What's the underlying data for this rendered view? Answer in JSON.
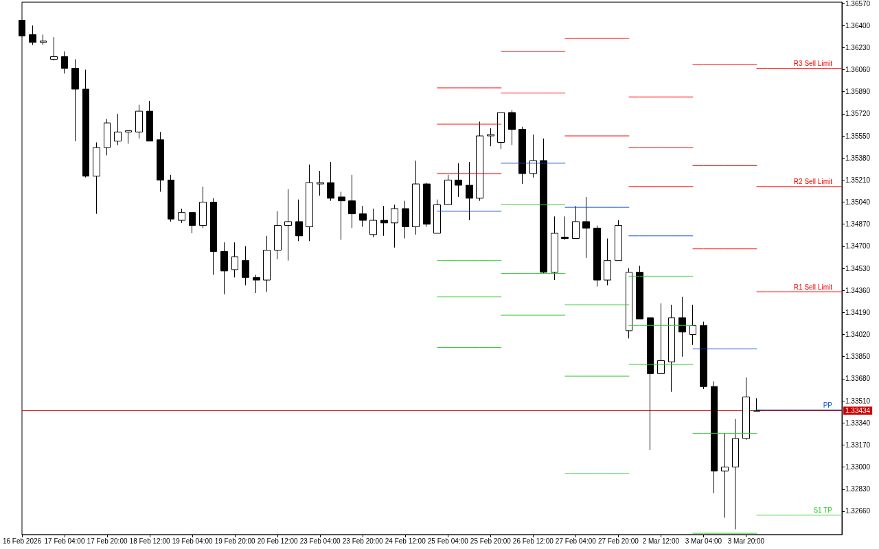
{
  "chart_data": {
    "type": "candlestick",
    "categories": [
      "16 Feb 2026",
      null,
      null,
      null,
      "17 Feb 04:00",
      null,
      null,
      null,
      "17 Feb 20:00",
      null,
      null,
      null,
      "18 Feb 12:00",
      null,
      null,
      null,
      "19 Feb 04:00",
      null,
      null,
      null,
      "19 Feb 20:00",
      null,
      null,
      null,
      "20 Feb 12:00",
      null,
      null,
      null,
      "23 Feb 04:00",
      null,
      null,
      null,
      "23 Feb 20:00",
      null,
      null,
      null,
      "24 Feb 12:00",
      null,
      null,
      null,
      "25 Feb 04:00",
      null,
      null,
      null,
      "25 Feb 20:00",
      null,
      null,
      null,
      "26 Feb 12:00",
      null,
      null,
      null,
      "27 Feb 04:00",
      null,
      null,
      null,
      "27 Feb 20:00",
      null,
      null,
      null,
      "2 Mar 12:00",
      null,
      null,
      null,
      "3 Mar 04:00",
      null,
      null,
      null,
      "3 Mar 20:00",
      null,
      null,
      null,
      null,
      null,
      null,
      null,
      null,
      null
    ],
    "ohlc": [
      [
        1.3644,
        1.3644,
        1.3632,
        1.3632
      ],
      [
        1.3633,
        1.364,
        1.3625,
        1.3627
      ],
      [
        1.3627,
        1.3633,
        1.3625,
        1.3628
      ],
      [
        1.3614,
        1.3631,
        1.3613,
        1.3616
      ],
      [
        1.3616,
        1.362,
        1.3603,
        1.3607
      ],
      [
        1.3607,
        1.3614,
        1.3551,
        1.3591
      ],
      [
        1.3591,
        1.3606,
        1.3523,
        1.3524
      ],
      [
        1.3524,
        1.355,
        1.3495,
        1.3546
      ],
      [
        1.3546,
        1.3568,
        1.354,
        1.3565
      ],
      [
        1.3551,
        1.3572,
        1.3548,
        1.3558
      ],
      [
        1.3558,
        1.3559,
        1.3549,
        1.3559
      ],
      [
        1.3558,
        1.3579,
        1.3553,
        1.3574
      ],
      [
        1.3574,
        1.3582,
        1.3551,
        1.3551
      ],
      [
        1.3552,
        1.3558,
        1.3512,
        1.3521
      ],
      [
        1.3521,
        1.3525,
        1.3489,
        1.3491
      ],
      [
        1.349,
        1.3499,
        1.3488,
        1.3496
      ],
      [
        1.3496,
        1.3496,
        1.348,
        1.3486
      ],
      [
        1.3486,
        1.3516,
        1.3484,
        1.3504
      ],
      [
        1.3504,
        1.3507,
        1.3448,
        1.3466
      ],
      [
        1.3466,
        1.3473,
        1.3433,
        1.3451
      ],
      [
        1.3452,
        1.3473,
        1.3446,
        1.3462
      ],
      [
        1.3459,
        1.347,
        1.344,
        1.3446
      ],
      [
        1.3446,
        1.3448,
        1.3434,
        1.3444
      ],
      [
        1.3444,
        1.3478,
        1.3435,
        1.3467
      ],
      [
        1.3467,
        1.3497,
        1.346,
        1.3486
      ],
      [
        1.3486,
        1.3514,
        1.3459,
        1.3489
      ],
      [
        1.3489,
        1.3506,
        1.3474,
        1.3478
      ],
      [
        1.3485,
        1.3533,
        1.3474,
        1.3519
      ],
      [
        1.3518,
        1.3528,
        1.3509,
        1.3519
      ],
      [
        1.3519,
        1.3535,
        1.3505,
        1.3507
      ],
      [
        1.3508,
        1.3512,
        1.3475,
        1.3505
      ],
      [
        1.3505,
        1.3525,
        1.3484,
        1.3495
      ],
      [
        1.3495,
        1.3501,
        1.3485,
        1.349
      ],
      [
        1.3479,
        1.3499,
        1.3477,
        1.349
      ],
      [
        1.349,
        1.3501,
        1.3478,
        1.3488
      ],
      [
        1.3488,
        1.3502,
        1.3469,
        1.3499
      ],
      [
        1.3499,
        1.3505,
        1.3476,
        1.3485
      ],
      [
        1.3485,
        1.3536,
        1.3479,
        1.3518
      ],
      [
        1.3518,
        1.3519,
        1.3485,
        1.3487
      ],
      [
        1.348,
        1.3506,
        1.348,
        1.3502
      ],
      [
        1.3502,
        1.3525,
        1.3502,
        1.3521
      ],
      [
        1.3521,
        1.3534,
        1.3508,
        1.3517
      ],
      [
        1.3517,
        1.3535,
        1.349,
        1.3507
      ],
      [
        1.3507,
        1.3566,
        1.3505,
        1.3555
      ],
      [
        1.3555,
        1.3561,
        1.3547,
        1.3556
      ],
      [
        1.355,
        1.3573,
        1.3545,
        1.3573
      ],
      [
        1.3573,
        1.3575,
        1.3548,
        1.356
      ],
      [
        1.356,
        1.3562,
        1.3518,
        1.3526
      ],
      [
        1.3526,
        1.3556,
        1.3523,
        1.3536
      ],
      [
        1.3536,
        1.3553,
        1.3449,
        1.345
      ],
      [
        1.345,
        1.3493,
        1.3444,
        1.348
      ],
      [
        1.3477,
        1.3493,
        1.3475,
        1.3476
      ],
      [
        1.3476,
        1.3501,
        1.3476,
        1.3489
      ],
      [
        1.3489,
        1.3508,
        1.3461,
        1.3484
      ],
      [
        1.3484,
        1.3486,
        1.3439,
        1.3444
      ],
      [
        1.3444,
        1.3476,
        1.344,
        1.3459
      ],
      [
        1.3459,
        1.349,
        1.3459,
        1.3486
      ],
      [
        1.3405,
        1.3453,
        1.3399,
        1.345
      ],
      [
        1.345,
        1.3455,
        1.3414,
        1.3414
      ],
      [
        1.3415,
        1.3415,
        1.3313,
        1.3372
      ],
      [
        1.3372,
        1.3426,
        1.3372,
        1.3382
      ],
      [
        1.3381,
        1.3425,
        1.3358,
        1.3415
      ],
      [
        1.3415,
        1.3431,
        1.3385,
        1.3404
      ],
      [
        1.3402,
        1.3425,
        1.3394,
        1.3409
      ],
      [
        1.3409,
        1.3412,
        1.336,
        1.3362
      ],
      [
        1.3362,
        1.3366,
        1.328,
        1.3297
      ],
      [
        1.3297,
        1.3326,
        1.3261,
        1.33
      ],
      [
        1.33,
        1.3337,
        1.3252,
        1.3322
      ],
      [
        1.3322,
        1.3369,
        1.3321,
        1.3354
      ],
      [
        1.3343,
        1.3353,
        1.3343,
        1.33434
      ],
      null,
      null,
      null,
      null,
      null,
      null,
      null,
      null
    ],
    "series": [
      {
        "type": "line",
        "color": "#ff0000",
        "values": [
          null,
          null,
          null,
          null,
          null,
          null,
          null,
          null,
          null,
          null,
          null,
          null,
          null,
          null,
          null,
          null,
          null,
          null,
          null,
          null,
          null,
          null,
          null,
          null,
          null,
          null,
          null,
          null,
          null,
          null,
          null,
          null,
          null,
          null,
          null,
          null,
          null,
          null,
          null,
          1.3592,
          1.3592,
          1.3592,
          1.3592,
          1.3592,
          1.3592,
          1.3592,
          null,
          null,
          null,
          null,
          null,
          null,
          null,
          null,
          null,
          null,
          null,
          null,
          null,
          null,
          null,
          null,
          null,
          1.361,
          1.361,
          1.361,
          1.361,
          1.361,
          1.361,
          1.361,
          null,
          null,
          null,
          null,
          null,
          null,
          null,
          null
        ]
      },
      {
        "type": "line",
        "color": "#ff0000",
        "values": [
          null,
          null,
          null,
          null,
          null,
          null,
          null,
          null,
          null,
          null,
          null,
          null,
          null,
          null,
          null,
          null,
          null,
          null,
          null,
          null,
          null,
          null,
          null,
          null,
          null,
          null,
          null,
          null,
          null,
          null,
          null,
          null,
          null,
          null,
          null,
          null,
          null,
          null,
          null,
          null,
          null,
          null,
          null,
          null,
          null,
          null,
          null,
          null,
          null,
          null,
          null,
          null,
          null,
          null,
          null,
          null,
          null,
          1.3585,
          1.3585,
          1.3585,
          1.3585,
          1.3585,
          1.3585,
          1.3585,
          null,
          null,
          null,
          null,
          null,
          null,
          null,
          null,
          null,
          null,
          null,
          null,
          null,
          null
        ]
      },
      {
        "type": "line",
        "color": "#ff0000",
        "values": [
          null,
          null,
          null,
          null,
          null,
          null,
          null,
          null,
          null,
          null,
          null,
          null,
          null,
          null,
          null,
          null,
          null,
          null,
          null,
          null,
          null,
          null,
          null,
          null,
          null,
          null,
          null,
          null,
          null,
          null,
          null,
          null,
          null,
          null,
          null,
          null,
          null,
          null,
          null,
          1.3564,
          1.3564,
          1.3564,
          1.3564,
          1.3564,
          1.3564,
          1.3564,
          null,
          null,
          null,
          null,
          null,
          1.363,
          1.363,
          1.363,
          1.363,
          1.363,
          1.363,
          1.363,
          null,
          null,
          null,
          null,
          null,
          1.3532,
          1.3532,
          1.3532,
          1.3532,
          1.3532,
          1.3532,
          1.3532,
          null,
          null,
          null,
          null,
          null,
          null,
          null,
          null
        ]
      },
      {
        "type": "line",
        "color": "#ff0000",
        "values": [
          null,
          null,
          null,
          null,
          null,
          null,
          null,
          null,
          null,
          null,
          null,
          null,
          null,
          null,
          null,
          null,
          null,
          null,
          null,
          null,
          null,
          null,
          null,
          null,
          null,
          null,
          null,
          null,
          null,
          null,
          null,
          null,
          null,
          null,
          null,
          null,
          null,
          null,
          null,
          null,
          null,
          null,
          null,
          null,
          null,
          1.362,
          1.362,
          1.362,
          1.362,
          1.362,
          1.362,
          1.362,
          null,
          null,
          null,
          null,
          null,
          1.3546,
          1.3546,
          1.3546,
          1.3546,
          1.3546,
          1.3546,
          1.3546,
          null,
          null,
          null,
          null,
          null,
          null,
          null,
          null,
          null,
          null,
          null,
          null,
          null,
          null
        ]
      },
      {
        "type": "line",
        "color": "#ff0000",
        "values": [
          null,
          null,
          null,
          null,
          null,
          null,
          null,
          null,
          null,
          null,
          null,
          null,
          null,
          null,
          null,
          null,
          null,
          null,
          null,
          null,
          null,
          null,
          null,
          null,
          null,
          null,
          null,
          null,
          null,
          null,
          null,
          null,
          null,
          null,
          null,
          null,
          null,
          null,
          null,
          1.3526,
          1.3526,
          1.3526,
          1.3526,
          1.3526,
          1.3526,
          1.3526,
          null,
          null,
          null,
          null,
          null,
          1.3555,
          1.3555,
          1.3555,
          1.3555,
          1.3555,
          1.3555,
          1.3555,
          null,
          null,
          null,
          null,
          null,
          1.3468,
          1.3468,
          1.3468,
          1.3468,
          1.3468,
          1.3468,
          1.3468,
          null,
          null,
          null,
          null,
          null,
          null,
          null,
          null
        ]
      },
      {
        "type": "line",
        "color": "#ff0000",
        "values": [
          null,
          null,
          null,
          null,
          null,
          null,
          null,
          null,
          null,
          null,
          null,
          null,
          null,
          null,
          null,
          null,
          null,
          null,
          null,
          null,
          null,
          null,
          null,
          null,
          null,
          null,
          null,
          null,
          null,
          null,
          null,
          null,
          null,
          null,
          null,
          null,
          null,
          null,
          null,
          null,
          null,
          null,
          null,
          null,
          null,
          1.3588,
          1.3588,
          1.3588,
          1.3588,
          1.3588,
          1.3588,
          1.3588,
          null,
          null,
          null,
          null,
          null,
          1.3516,
          1.3516,
          1.3516,
          1.3516,
          1.3516,
          1.3516,
          1.3516,
          null,
          null,
          null,
          null,
          null,
          null,
          null,
          null,
          null,
          null,
          null,
          null,
          null,
          null
        ]
      },
      {
        "type": "line",
        "color": "#0a4fd4",
        "values": [
          null,
          null,
          null,
          null,
          null,
          null,
          null,
          null,
          null,
          null,
          null,
          null,
          null,
          null,
          null,
          null,
          null,
          null,
          null,
          null,
          null,
          null,
          null,
          null,
          null,
          null,
          null,
          null,
          null,
          null,
          null,
          null,
          null,
          null,
          null,
          null,
          null,
          null,
          null,
          1.3497,
          1.3497,
          1.3497,
          1.3497,
          1.3497,
          1.3497,
          1.3497,
          null,
          null,
          null,
          null,
          null,
          1.35,
          1.35,
          1.35,
          1.35,
          1.35,
          1.35,
          1.35,
          null,
          null,
          null,
          null,
          null,
          1.3391,
          1.3391,
          1.3391,
          1.3391,
          1.3391,
          1.3391,
          1.3391,
          null,
          null,
          null,
          null,
          null,
          null,
          null,
          null
        ]
      },
      {
        "type": "line",
        "color": "#0a4fd4",
        "values": [
          null,
          null,
          null,
          null,
          null,
          null,
          null,
          null,
          null,
          null,
          null,
          null,
          null,
          null,
          null,
          null,
          null,
          null,
          null,
          null,
          null,
          null,
          null,
          null,
          null,
          null,
          null,
          null,
          null,
          null,
          null,
          null,
          null,
          null,
          null,
          null,
          null,
          null,
          null,
          null,
          null,
          null,
          null,
          null,
          null,
          1.3534,
          1.3534,
          1.3534,
          1.3534,
          1.3534,
          1.3534,
          1.3534,
          null,
          null,
          null,
          null,
          null,
          1.3478,
          1.3478,
          1.3478,
          1.3478,
          1.3478,
          1.3478,
          1.3478,
          null,
          null,
          null,
          null,
          null,
          null,
          null,
          null,
          null,
          null,
          null,
          null,
          null,
          null
        ]
      },
      {
        "type": "line",
        "color": "#32cd32",
        "values": [
          null,
          null,
          null,
          null,
          null,
          null,
          null,
          null,
          null,
          null,
          null,
          null,
          null,
          null,
          null,
          null,
          null,
          null,
          null,
          null,
          null,
          null,
          null,
          null,
          null,
          null,
          null,
          null,
          null,
          null,
          null,
          null,
          null,
          null,
          null,
          null,
          null,
          null,
          null,
          1.3459,
          1.3459,
          1.3459,
          1.3459,
          1.3459,
          1.3459,
          1.3459,
          null,
          null,
          null,
          null,
          null,
          1.3425,
          1.3425,
          1.3425,
          1.3425,
          1.3425,
          1.3425,
          1.3425,
          null,
          null,
          null,
          null,
          null,
          1.3326,
          1.3326,
          1.3326,
          1.3326,
          1.3326,
          1.3326,
          1.3326,
          null,
          null,
          null,
          null,
          null,
          null,
          null,
          null
        ]
      },
      {
        "type": "line",
        "color": "#32cd32",
        "values": [
          null,
          null,
          null,
          null,
          null,
          null,
          null,
          null,
          null,
          null,
          null,
          null,
          null,
          null,
          null,
          null,
          null,
          null,
          null,
          null,
          null,
          null,
          null,
          null,
          null,
          null,
          null,
          null,
          null,
          null,
          null,
          null,
          null,
          null,
          null,
          null,
          null,
          null,
          null,
          null,
          null,
          null,
          null,
          null,
          null,
          1.3502,
          1.3502,
          1.3502,
          1.3502,
          1.3502,
          1.3502,
          1.3502,
          null,
          null,
          null,
          null,
          null,
          1.3447,
          1.3447,
          1.3447,
          1.3447,
          1.3447,
          1.3447,
          1.3447,
          null,
          null,
          null,
          null,
          null,
          null,
          null,
          null,
          null,
          null,
          null,
          null,
          null,
          null
        ]
      },
      {
        "type": "line",
        "color": "#32cd32",
        "values": [
          null,
          null,
          null,
          null,
          null,
          null,
          null,
          null,
          null,
          null,
          null,
          null,
          null,
          null,
          null,
          null,
          null,
          null,
          null,
          null,
          null,
          null,
          null,
          null,
          null,
          null,
          null,
          null,
          null,
          null,
          null,
          null,
          null,
          null,
          null,
          null,
          null,
          null,
          null,
          1.3431,
          1.3431,
          1.3431,
          1.3431,
          1.3431,
          1.3431,
          1.3431,
          null,
          null,
          null,
          null,
          null,
          1.337,
          1.337,
          1.337,
          1.337,
          1.337,
          1.337,
          1.337,
          null,
          null,
          null,
          null,
          null,
          1.3249,
          1.3249,
          1.3249,
          1.3249,
          1.3249,
          1.3249,
          1.3249,
          null,
          null,
          null,
          null,
          null,
          null,
          null,
          null
        ]
      },
      {
        "type": "line",
        "color": "#32cd32",
        "values": [
          null,
          null,
          null,
          null,
          null,
          null,
          null,
          null,
          null,
          null,
          null,
          null,
          null,
          null,
          null,
          null,
          null,
          null,
          null,
          null,
          null,
          null,
          null,
          null,
          null,
          null,
          null,
          null,
          null,
          null,
          null,
          null,
          null,
          null,
          null,
          null,
          null,
          null,
          null,
          null,
          null,
          null,
          null,
          null,
          null,
          1.3449,
          1.3449,
          1.3449,
          1.3449,
          1.3449,
          1.3449,
          1.3449,
          null,
          null,
          null,
          null,
          null,
          1.3409,
          1.3409,
          1.3409,
          1.3409,
          1.3409,
          1.3409,
          1.3409,
          null,
          null,
          null,
          null,
          null,
          null,
          null,
          null,
          null,
          null,
          null,
          null,
          null,
          null
        ]
      },
      {
        "type": "line",
        "color": "#32cd32",
        "values": [
          null,
          null,
          null,
          null,
          null,
          null,
          null,
          null,
          null,
          null,
          null,
          null,
          null,
          null,
          null,
          null,
          null,
          null,
          null,
          null,
          null,
          null,
          null,
          null,
          null,
          null,
          null,
          null,
          null,
          null,
          null,
          null,
          null,
          null,
          null,
          null,
          null,
          null,
          null,
          1.3392,
          1.3392,
          1.3392,
          1.3392,
          1.3392,
          1.3392,
          1.3392,
          null,
          null,
          null,
          null,
          null,
          1.3295,
          1.3295,
          1.3295,
          1.3295,
          1.3295,
          1.3295,
          1.3295,
          null,
          null,
          null,
          null,
          null,
          null,
          null,
          null,
          null,
          null,
          null,
          null,
          null,
          null,
          null,
          null,
          null,
          null,
          null,
          null
        ]
      },
      {
        "type": "line",
        "color": "#32cd32",
        "values": [
          null,
          null,
          null,
          null,
          null,
          null,
          null,
          null,
          null,
          null,
          null,
          null,
          null,
          null,
          null,
          null,
          null,
          null,
          null,
          null,
          null,
          null,
          null,
          null,
          null,
          null,
          null,
          null,
          null,
          null,
          null,
          null,
          null,
          null,
          null,
          null,
          null,
          null,
          null,
          null,
          null,
          null,
          null,
          null,
          null,
          1.3417,
          1.3417,
          1.3417,
          1.3417,
          1.3417,
          1.3417,
          1.3417,
          null,
          null,
          null,
          null,
          null,
          1.3379,
          1.3379,
          1.3379,
          1.3379,
          1.3379,
          1.3379,
          1.3379,
          null,
          null,
          null,
          null,
          null,
          null,
          null,
          null,
          null,
          null,
          null,
          null,
          null,
          null
        ]
      },
      {
        "type": "line",
        "name": "R3 Sell Limit",
        "color": "#ff0000",
        "values": [
          null,
          null,
          null,
          null,
          null,
          null,
          null,
          null,
          null,
          null,
          null,
          null,
          null,
          null,
          null,
          null,
          null,
          null,
          null,
          null,
          null,
          null,
          null,
          null,
          null,
          null,
          null,
          null,
          null,
          null,
          null,
          null,
          null,
          null,
          null,
          null,
          null,
          null,
          null,
          null,
          null,
          null,
          null,
          null,
          null,
          null,
          null,
          null,
          null,
          null,
          null,
          null,
          null,
          null,
          null,
          null,
          null,
          null,
          null,
          null,
          null,
          null,
          null,
          null,
          null,
          null,
          null,
          null,
          null,
          1.3607,
          1.3607,
          1.3607,
          1.3607,
          1.3607,
          1.3607,
          1.3607,
          1.3607,
          1.3607
        ]
      },
      {
        "type": "line",
        "name": "R2 Sell Limit",
        "color": "#ff0000",
        "values": [
          null,
          null,
          null,
          null,
          null,
          null,
          null,
          null,
          null,
          null,
          null,
          null,
          null,
          null,
          null,
          null,
          null,
          null,
          null,
          null,
          null,
          null,
          null,
          null,
          null,
          null,
          null,
          null,
          null,
          null,
          null,
          null,
          null,
          null,
          null,
          null,
          null,
          null,
          null,
          null,
          null,
          null,
          null,
          null,
          null,
          null,
          null,
          null,
          null,
          null,
          null,
          null,
          null,
          null,
          null,
          null,
          null,
          null,
          null,
          null,
          null,
          null,
          null,
          null,
          null,
          null,
          null,
          null,
          null,
          1.3516,
          1.3516,
          1.3516,
          1.3516,
          1.3516,
          1.3516,
          1.3516,
          1.3516,
          1.3516
        ]
      },
      {
        "type": "line",
        "name": "R1 Sell Limit",
        "color": "#ff0000",
        "values": [
          null,
          null,
          null,
          null,
          null,
          null,
          null,
          null,
          null,
          null,
          null,
          null,
          null,
          null,
          null,
          null,
          null,
          null,
          null,
          null,
          null,
          null,
          null,
          null,
          null,
          null,
          null,
          null,
          null,
          null,
          null,
          null,
          null,
          null,
          null,
          null,
          null,
          null,
          null,
          null,
          null,
          null,
          null,
          null,
          null,
          null,
          null,
          null,
          null,
          null,
          null,
          null,
          null,
          null,
          null,
          null,
          null,
          null,
          null,
          null,
          null,
          null,
          null,
          null,
          null,
          null,
          null,
          null,
          null,
          1.3435,
          1.3435,
          1.3435,
          1.3435,
          1.3435,
          1.3435,
          1.3435,
          1.3435,
          1.3435
        ]
      },
      {
        "type": "line",
        "name": "PP",
        "color": "#0a4fd4",
        "values": [
          null,
          null,
          null,
          null,
          null,
          null,
          null,
          null,
          null,
          null,
          null,
          null,
          null,
          null,
          null,
          null,
          null,
          null,
          null,
          null,
          null,
          null,
          null,
          null,
          null,
          null,
          null,
          null,
          null,
          null,
          null,
          null,
          null,
          null,
          null,
          null,
          null,
          null,
          null,
          null,
          null,
          null,
          null,
          null,
          null,
          null,
          null,
          null,
          null,
          null,
          null,
          null,
          null,
          null,
          null,
          null,
          null,
          null,
          null,
          null,
          null,
          null,
          null,
          null,
          null,
          null,
          null,
          null,
          null,
          1.3344,
          1.3344,
          1.3344,
          1.3344,
          1.3344,
          1.3344,
          1.3344,
          1.3344,
          1.3344
        ]
      },
      {
        "type": "line",
        "name": "S1 TP",
        "color": "#32cd32",
        "values": [
          null,
          null,
          null,
          null,
          null,
          null,
          null,
          null,
          null,
          null,
          null,
          null,
          null,
          null,
          null,
          null,
          null,
          null,
          null,
          null,
          null,
          null,
          null,
          null,
          null,
          null,
          null,
          null,
          null,
          null,
          null,
          null,
          null,
          null,
          null,
          null,
          null,
          null,
          null,
          null,
          null,
          null,
          null,
          null,
          null,
          null,
          null,
          null,
          null,
          null,
          null,
          null,
          null,
          null,
          null,
          null,
          null,
          null,
          null,
          null,
          null,
          null,
          null,
          null,
          null,
          null,
          null,
          null,
          null,
          1.3263,
          1.3263,
          1.3263,
          1.3263,
          1.3263,
          1.3263,
          1.3263,
          1.3263,
          1.3263
        ]
      }
    ],
    "ylim": [
      1.3248,
      1.3658
    ],
    "yticks": [
      {
        "value": 1.3266,
        "label": "1.32660"
      },
      {
        "value": 1.3283,
        "label": "1.32830"
      },
      {
        "value": 1.33,
        "label": "1.33000"
      },
      {
        "value": 1.3317,
        "label": "1.33170"
      },
      {
        "value": 1.3334,
        "label": "1.33340"
      },
      {
        "value": 1.3351,
        "label": "1.33510"
      },
      {
        "value": 1.3368,
        "label": "1.33680"
      },
      {
        "value": 1.3385,
        "label": "1.33850"
      },
      {
        "value": 1.3402,
        "label": "1.34020"
      },
      {
        "value": 1.3419,
        "label": "1.34190"
      },
      {
        "value": 1.3436,
        "label": "1.34360"
      },
      {
        "value": 1.3453,
        "label": "1.34530"
      },
      {
        "value": 1.347,
        "label": "1.34700"
      },
      {
        "value": 1.3487,
        "label": "1.34870"
      },
      {
        "value": 1.3504,
        "label": "1.35040"
      },
      {
        "value": 1.3521,
        "label": "1.35210"
      },
      {
        "value": 1.3538,
        "label": "1.35380"
      },
      {
        "value": 1.3555,
        "label": "1.35550"
      },
      {
        "value": 1.3572,
        "label": "1.35720"
      },
      {
        "value": 1.3589,
        "label": "1.35890"
      },
      {
        "value": 1.3606,
        "label": "1.36060"
      },
      {
        "value": 1.3623,
        "label": "1.36230"
      },
      {
        "value": 1.364,
        "label": "1.36400"
      },
      {
        "value": 1.3657,
        "label": "1.36570"
      }
    ],
    "ref_lines": [
      {
        "axis": "y",
        "value": 1.33434,
        "label": "1.33434",
        "color": "#cc0000"
      }
    ]
  }
}
